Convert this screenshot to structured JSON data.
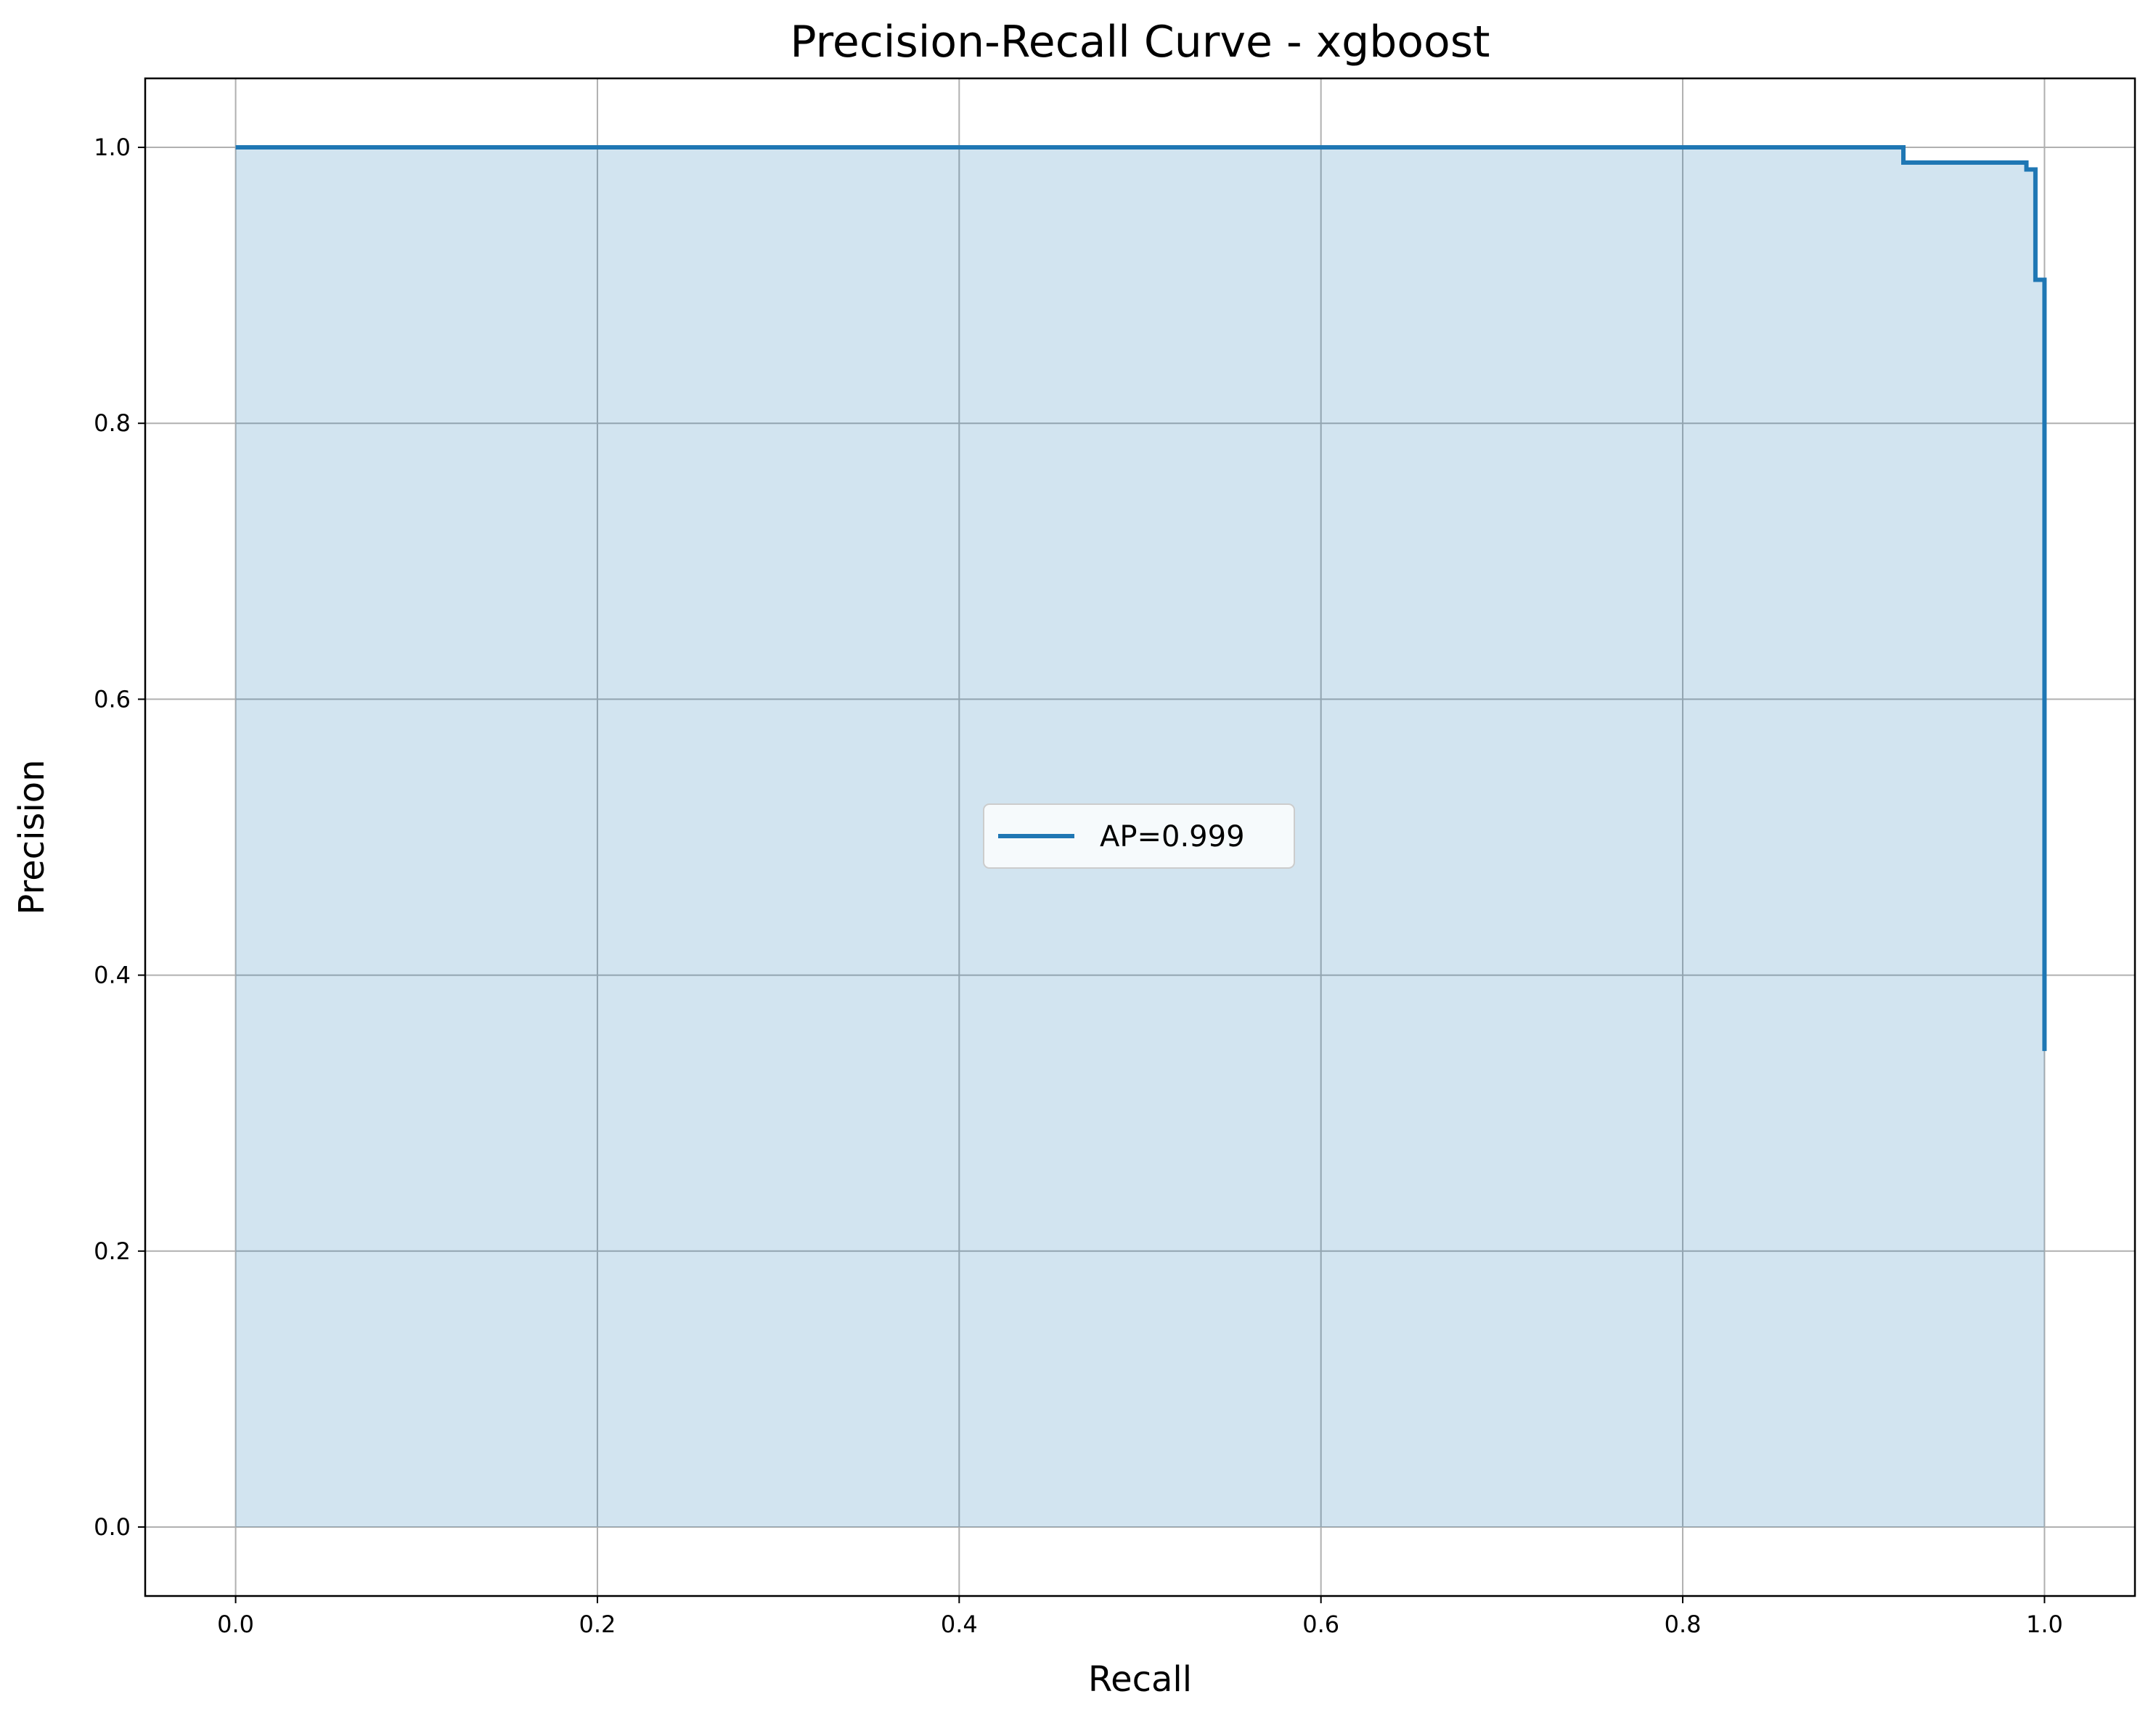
{
  "chart_data": {
    "type": "line",
    "title": "Precision-Recall Curve - xgboost",
    "xlabel": "Recall",
    "ylabel": "Precision",
    "xlim": [
      -0.05,
      1.05
    ],
    "ylim": [
      -0.05,
      1.05
    ],
    "x_ticks": [
      "0.0",
      "0.2",
      "0.4",
      "0.6",
      "0.8",
      "1.0"
    ],
    "y_ticks": [
      "0.0",
      "0.2",
      "0.4",
      "0.6",
      "0.8",
      "1.0"
    ],
    "grid": true,
    "legend_position": "center",
    "fill_under_curve": true,
    "series": [
      {
        "name": "AP=0.999",
        "color": "#1f77b4",
        "fill_color": "#1f77b4",
        "step": "post",
        "recall": [
          0.0,
          0.922,
          0.922,
          0.99,
          0.99,
          0.995,
          0.995,
          1.0,
          1.0
        ],
        "precision": [
          1.0,
          1.0,
          0.989,
          0.989,
          0.984,
          0.984,
          0.904,
          0.904,
          0.345
        ]
      }
    ]
  }
}
